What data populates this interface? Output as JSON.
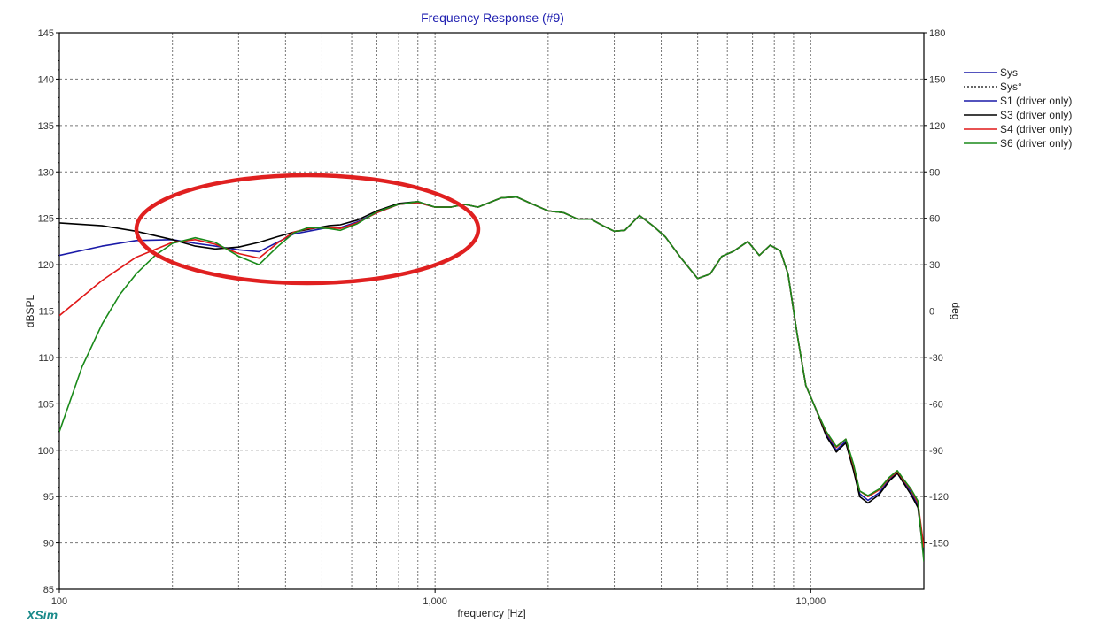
{
  "brand": "XSim",
  "colors": {
    "plot_bg": "#ffffff",
    "axis": "#000000",
    "grid": "#777777",
    "zero_line": "#2b2bb0",
    "title": "#2020b0",
    "annotation": "#e02020"
  },
  "chart_data": {
    "type": "line",
    "title": "Frequency Response (#9)",
    "xlabel": "frequency [Hz]",
    "ylabel": "dBSPL",
    "y2label": "deg",
    "xscale": "log",
    "xlim": [
      100,
      20000
    ],
    "ylim": [
      85,
      145
    ],
    "y2lim": [
      -180,
      180
    ],
    "x_ticks": [
      100,
      1000,
      10000
    ],
    "x_tick_labels": [
      "100",
      "1,000",
      "10,000"
    ],
    "y_ticks": [
      85,
      90,
      95,
      100,
      105,
      110,
      115,
      120,
      125,
      130,
      135,
      140,
      145
    ],
    "y_tick_labels": [
      "85",
      "90",
      "95",
      "100",
      "105",
      "110",
      "115",
      "120",
      "125",
      "130",
      "135",
      "140",
      "145"
    ],
    "y2_ticks": [
      -150,
      -120,
      -90,
      -60,
      -30,
      0,
      30,
      60,
      90,
      120,
      150,
      180
    ],
    "y2_tick_labels": [
      "-150",
      "-120",
      "-90",
      "-60",
      "-30",
      "0",
      "30",
      "60",
      "90",
      "120",
      "150",
      "180"
    ],
    "grid": true,
    "legend_position": "right",
    "legend": [
      {
        "label": "Sys",
        "color": "#1a1aa8",
        "style": "solid"
      },
      {
        "label": "Sys°",
        "color": "#333333",
        "style": "dashed"
      },
      {
        "label": "S1 (driver only)",
        "color": "#1a1aa8",
        "style": "solid"
      },
      {
        "label": "S3 (driver only)",
        "color": "#000000",
        "style": "solid"
      },
      {
        "label": "S4 (driver only)",
        "color": "#e01818",
        "style": "solid"
      },
      {
        "label": "S6 (driver only)",
        "color": "#1a8a1a",
        "style": "solid"
      }
    ],
    "series": [
      {
        "name": "Sys°",
        "color": "#333333",
        "axis": "y2",
        "x": [
          100,
          20000
        ],
        "y": [
          0,
          0
        ]
      },
      {
        "name": "S1 (driver only)",
        "color": "#1a1aa8",
        "x": [
          100,
          130,
          160,
          200,
          230,
          260,
          300,
          340,
          380,
          420,
          460,
          520,
          560,
          620,
          700,
          800,
          900,
          1000,
          1100,
          1200,
          1300,
          1500,
          1650,
          1800,
          2000,
          2200,
          2400,
          2600,
          2800,
          3000,
          3200,
          3500,
          3800,
          4100,
          4500,
          5000,
          5400,
          5800,
          6200,
          6800,
          7300,
          7800,
          8300,
          8700,
          9200,
          9700,
          10300,
          11000,
          11700,
          12400,
          13000,
          13500,
          14200,
          15200,
          16200,
          17000,
          17700,
          18500,
          19300,
          20000
        ],
        "y": [
          121.0,
          122.0,
          122.6,
          122.7,
          122.3,
          122.0,
          121.6,
          121.4,
          122.4,
          123.3,
          123.6,
          124.0,
          124.0,
          124.6,
          125.6,
          126.5,
          126.7,
          126.2,
          126.2,
          126.5,
          126.2,
          127.2,
          127.3,
          126.6,
          125.8,
          125.6,
          124.9,
          124.9,
          124.2,
          123.6,
          123.7,
          125.3,
          124.2,
          123.0,
          120.8,
          118.5,
          119.0,
          120.9,
          121.4,
          122.5,
          121.0,
          122.1,
          121.5,
          119.0,
          112.5,
          107.0,
          104.5,
          101.7,
          100.0,
          101.0,
          98.0,
          95.3,
          94.6,
          95.4,
          96.8,
          97.6,
          96.6,
          95.5,
          94.0,
          89.0
        ]
      },
      {
        "name": "S3 (driver only)",
        "color": "#000000",
        "x": [
          100,
          130,
          160,
          200,
          230,
          260,
          300,
          340,
          380,
          420,
          460,
          520,
          560,
          620,
          700,
          800,
          900,
          1000,
          1100,
          1200,
          1300,
          1500,
          1650,
          1800,
          2000,
          2200,
          2400,
          2600,
          2800,
          3000,
          3200,
          3500,
          3800,
          4100,
          4500,
          5000,
          5400,
          5800,
          6200,
          6800,
          7300,
          7800,
          8300,
          8700,
          9200,
          9700,
          10300,
          11000,
          11700,
          12400,
          13000,
          13500,
          14200,
          15200,
          16200,
          17000,
          17700,
          18500,
          19300,
          20000
        ],
        "y": [
          124.5,
          124.2,
          123.6,
          122.7,
          122.0,
          121.7,
          121.9,
          122.4,
          123.0,
          123.5,
          123.8,
          124.2,
          124.3,
          124.8,
          125.8,
          126.6,
          126.8,
          126.2,
          126.2,
          126.5,
          126.2,
          127.2,
          127.3,
          126.6,
          125.8,
          125.6,
          124.9,
          124.9,
          124.2,
          123.6,
          123.7,
          125.3,
          124.2,
          123.0,
          120.8,
          118.5,
          119.0,
          120.9,
          121.4,
          122.5,
          121.0,
          122.1,
          121.5,
          119.0,
          112.5,
          107.0,
          104.5,
          101.5,
          99.8,
          100.8,
          97.8,
          95.0,
          94.3,
          95.2,
          96.7,
          97.5,
          96.4,
          95.2,
          93.8,
          88.5
        ]
      },
      {
        "name": "S4 (driver only)",
        "color": "#e01818",
        "x": [
          100,
          130,
          160,
          200,
          230,
          260,
          300,
          340,
          380,
          420,
          460,
          520,
          560,
          620,
          700,
          800,
          900,
          1000,
          1100,
          1200,
          1300,
          1500,
          1650,
          1800,
          2000,
          2200,
          2400,
          2600,
          2800,
          3000,
          3200,
          3500,
          3800,
          4100,
          4500,
          5000,
          5400,
          5800,
          6200,
          6800,
          7300,
          7800,
          8300,
          8700,
          9200,
          9700,
          10300,
          11000,
          11700,
          12400,
          13000,
          13500,
          14200,
          15200,
          16200,
          17000,
          17700,
          18500,
          19300,
          20000
        ],
        "y": [
          114.5,
          118.3,
          120.8,
          122.4,
          122.7,
          122.2,
          121.2,
          120.7,
          122.3,
          123.5,
          123.9,
          124.0,
          123.9,
          124.5,
          125.6,
          126.5,
          126.7,
          126.2,
          126.2,
          126.5,
          126.2,
          127.2,
          127.3,
          126.6,
          125.8,
          125.6,
          124.9,
          124.9,
          124.2,
          123.6,
          123.7,
          125.3,
          124.2,
          123.0,
          120.8,
          118.5,
          119.0,
          120.9,
          121.4,
          122.5,
          121.0,
          122.1,
          121.5,
          119.0,
          112.5,
          107.0,
          104.5,
          101.9,
          100.3,
          101.2,
          98.3,
          95.6,
          95.0,
          95.7,
          97.0,
          97.7,
          96.7,
          95.7,
          94.3,
          89.5
        ]
      },
      {
        "name": "S6 (driver only)",
        "color": "#1a8a1a",
        "x": [
          100,
          115,
          130,
          145,
          160,
          180,
          200,
          230,
          260,
          300,
          340,
          380,
          420,
          460,
          520,
          560,
          620,
          700,
          800,
          900,
          1000,
          1100,
          1200,
          1300,
          1500,
          1650,
          1800,
          2000,
          2200,
          2400,
          2600,
          2800,
          3000,
          3200,
          3500,
          3800,
          4100,
          4500,
          5000,
          5400,
          5800,
          6200,
          6800,
          7300,
          7800,
          8300,
          8700,
          9200,
          9700,
          10300,
          11000,
          11700,
          12400,
          13000,
          13500,
          14200,
          15200,
          16200,
          17000,
          17700,
          18500,
          19300,
          20000
        ],
        "y": [
          102.0,
          109.0,
          113.6,
          116.8,
          119.0,
          121.0,
          122.3,
          122.9,
          122.4,
          120.9,
          120.0,
          121.9,
          123.4,
          124.0,
          123.9,
          123.7,
          124.4,
          125.7,
          126.5,
          126.8,
          126.2,
          126.2,
          126.5,
          126.2,
          127.2,
          127.3,
          126.6,
          125.8,
          125.6,
          124.9,
          124.9,
          124.2,
          123.6,
          123.7,
          125.3,
          124.2,
          123.0,
          120.8,
          118.5,
          119.0,
          120.9,
          121.4,
          122.5,
          121.0,
          122.1,
          121.5,
          119.0,
          112.5,
          107.0,
          104.5,
          102.0,
          100.4,
          101.2,
          98.5,
          95.6,
          95.1,
          95.8,
          97.1,
          97.8,
          96.8,
          95.8,
          94.5,
          88.0
        ]
      }
    ]
  }
}
